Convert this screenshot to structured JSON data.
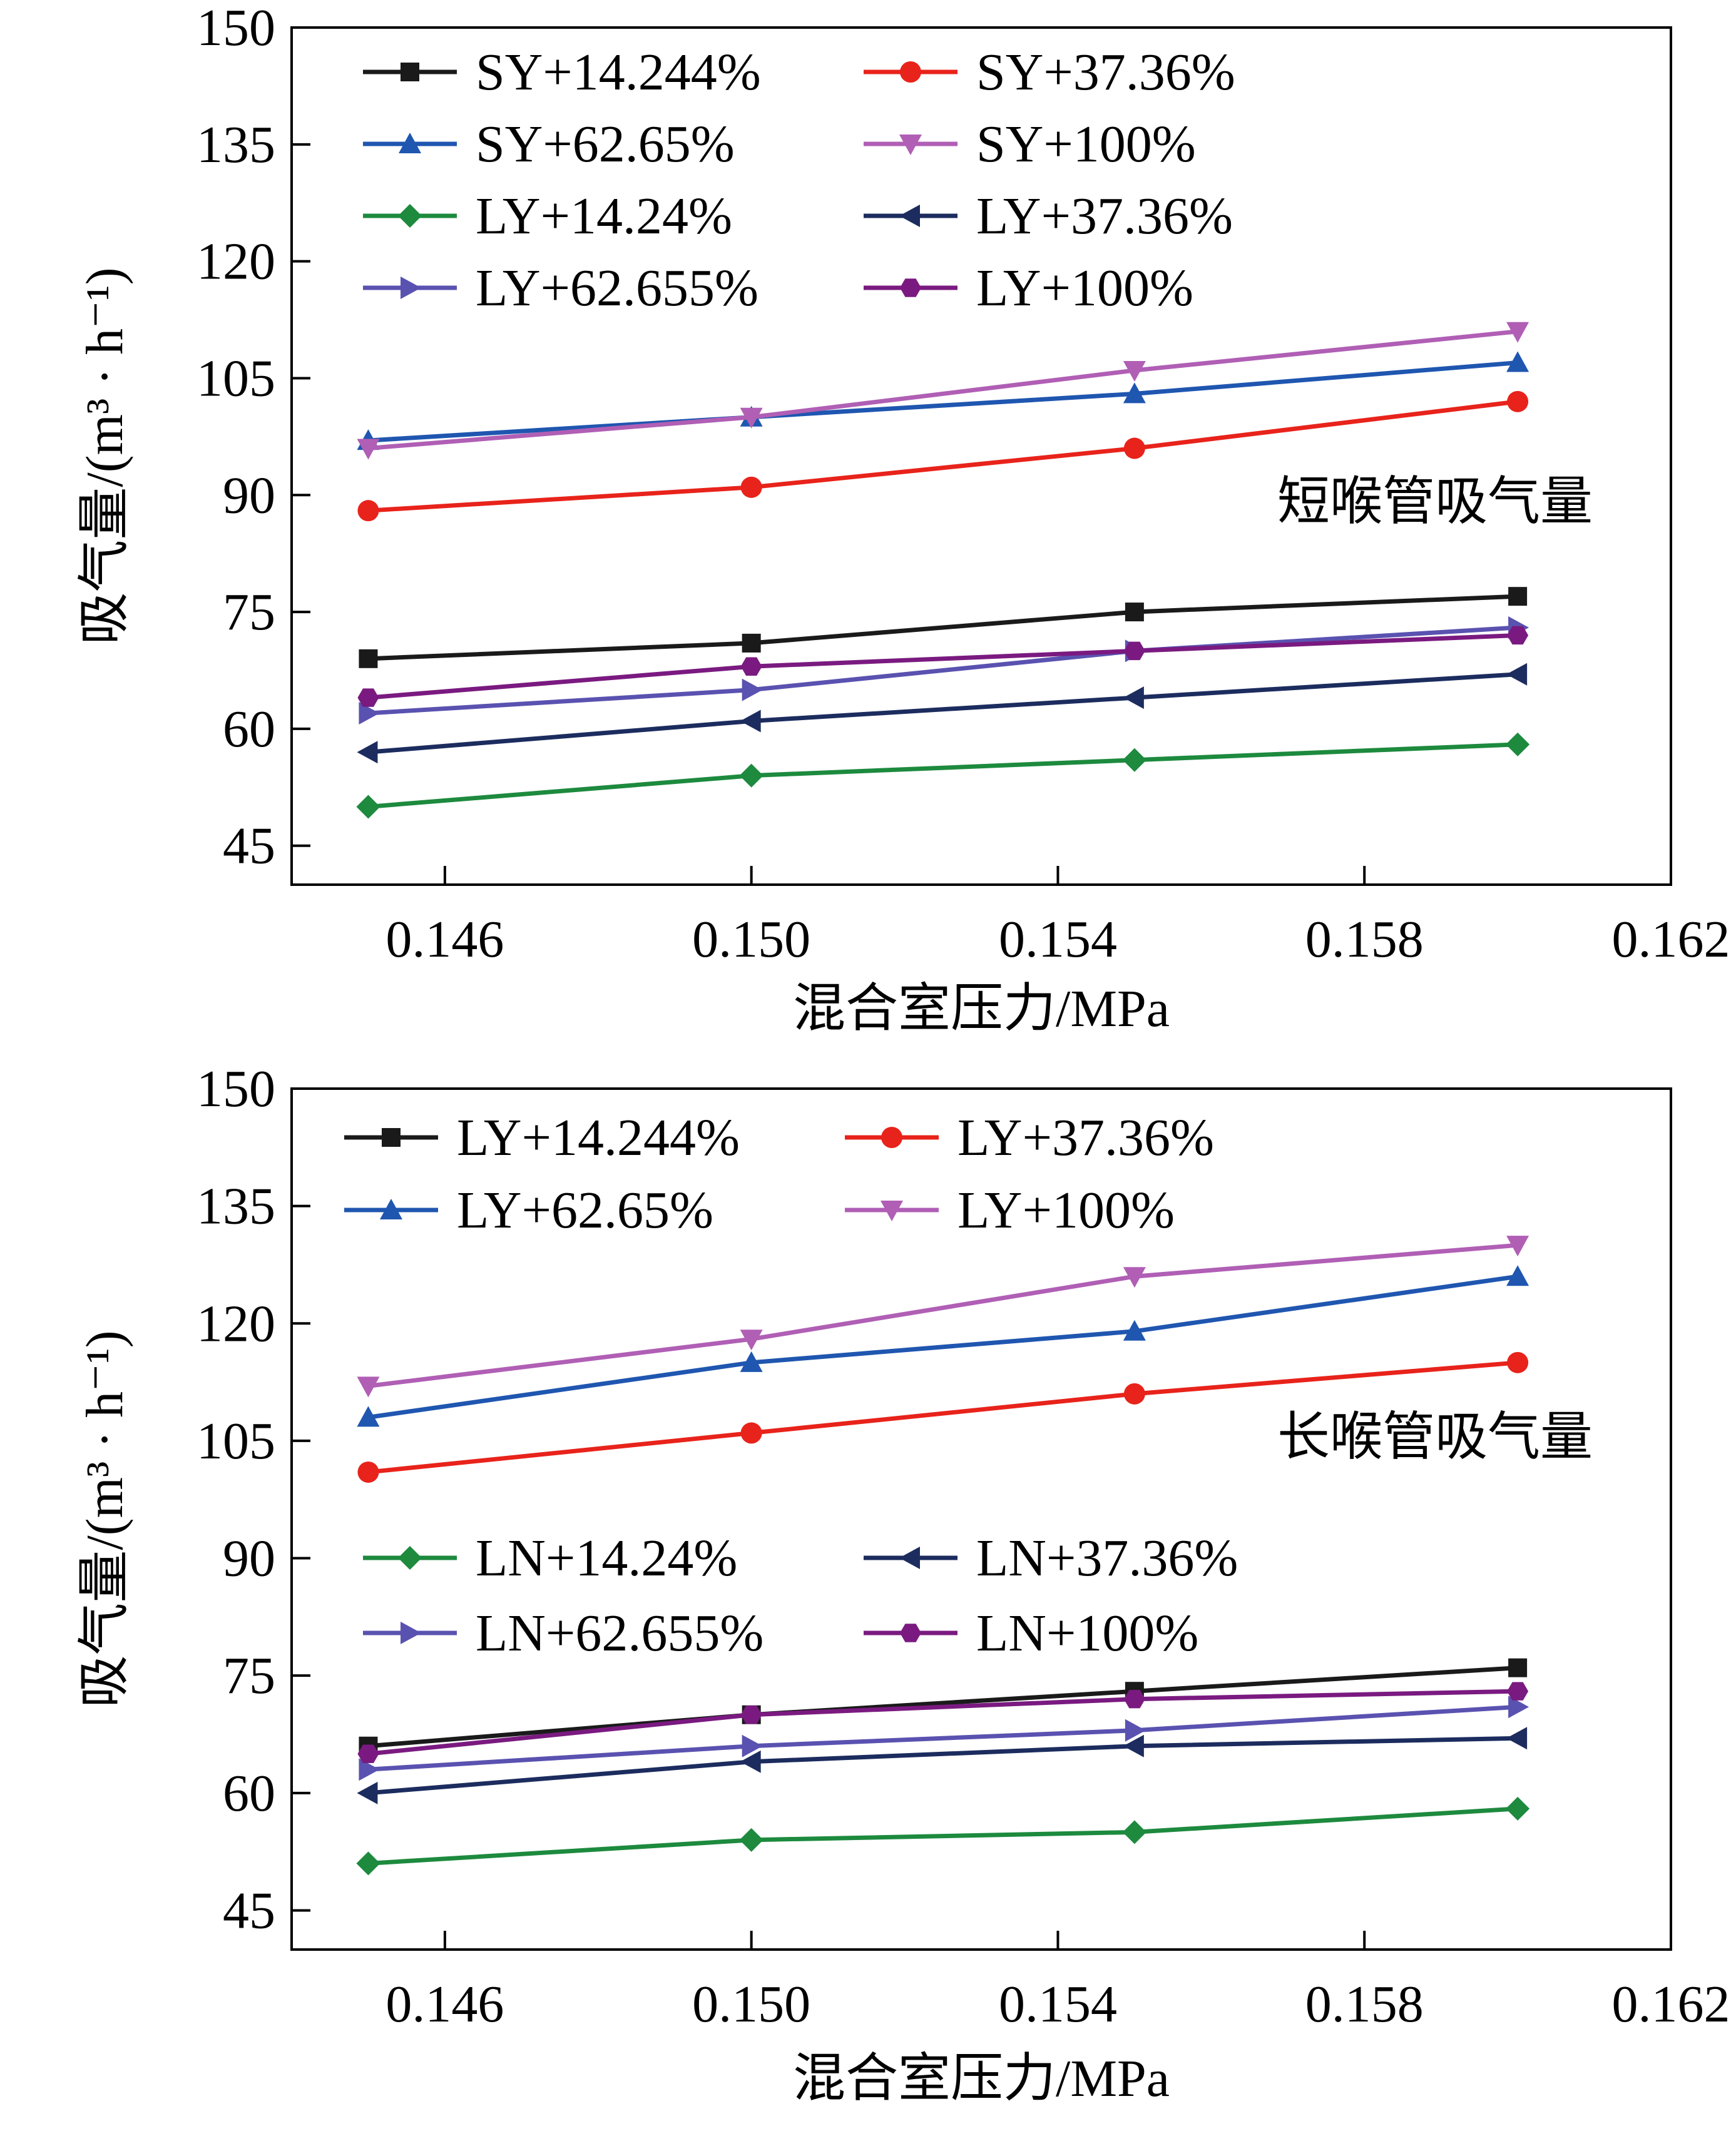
{
  "chart_data": [
    {
      "type": "line",
      "title": "",
      "annotation": "短喉管吸气量",
      "xlabel": "混合室压力/MPa",
      "ylabel": "吸气量/(m³ · h⁻¹)",
      "xlim": [
        0.144,
        0.162
      ],
      "ylim": [
        40,
        150
      ],
      "xticks": [
        "0.146",
        "0.150",
        "0.154",
        "0.158",
        "0.162"
      ],
      "yticks": [
        "45",
        "60",
        "75",
        "90",
        "105",
        "120",
        "135",
        "150"
      ],
      "x": [
        0.145,
        0.15,
        0.155,
        0.16
      ],
      "grid": false,
      "legend_position": "top-left",
      "legend_columns": 2,
      "series": [
        {
          "name": "SY+14.244%",
          "values": [
            69,
            71,
            75,
            77
          ],
          "color": "#1a1a1a",
          "marker": "square"
        },
        {
          "name": "SY+37.36%",
          "values": [
            88,
            91,
            96,
            102
          ],
          "color": "#e8231b",
          "marker": "circle"
        },
        {
          "name": "SY+62.65%",
          "values": [
            97,
            100,
            103,
            107
          ],
          "color": "#1f56b0",
          "marker": "triangle-up"
        },
        {
          "name": "SY+100%",
          "values": [
            96,
            100,
            106,
            111
          ],
          "color": "#b05fb5",
          "marker": "triangle-down"
        },
        {
          "name": "LY+14.24%",
          "values": [
            50,
            54,
            56,
            58
          ],
          "color": "#1d8a3e",
          "marker": "diamond"
        },
        {
          "name": "LY+37.36%",
          "values": [
            57,
            61,
            64,
            67
          ],
          "color": "#1c2c5e",
          "marker": "triangle-left"
        },
        {
          "name": "LY+62.655%",
          "values": [
            62,
            65,
            70,
            73
          ],
          "color": "#5a52b0",
          "marker": "triangle-right"
        },
        {
          "name": "LY+100%",
          "values": [
            64,
            68,
            70,
            72
          ],
          "color": "#7a1a80",
          "marker": "hexagon"
        }
      ]
    },
    {
      "type": "line",
      "title": "",
      "annotation": "长喉管吸气量",
      "xlabel": "混合室压力/MPa",
      "ylabel": "吸气量/(m³ · h⁻¹)",
      "xlim": [
        0.144,
        0.162
      ],
      "ylim": [
        40,
        150
      ],
      "xticks": [
        "0.146",
        "0.150",
        "0.154",
        "0.158",
        "0.162"
      ],
      "yticks": [
        "45",
        "60",
        "75",
        "90",
        "105",
        "120",
        "135",
        "150"
      ],
      "x": [
        0.145,
        0.15,
        0.155,
        0.16
      ],
      "grid": false,
      "legend_position": "top-left (upper group) and middle-left (lower group)",
      "legend_columns": 2,
      "series": [
        {
          "name": "LY+14.244%",
          "values": [
            66,
            70,
            73,
            76
          ],
          "color": "#1a1a1a",
          "marker": "square"
        },
        {
          "name": "LY+37.36%",
          "values": [
            101,
            106,
            111,
            115
          ],
          "color": "#e8231b",
          "marker": "circle"
        },
        {
          "name": "LY+62.65%",
          "values": [
            108,
            115,
            119,
            126
          ],
          "color": "#1f56b0",
          "marker": "triangle-up"
        },
        {
          "name": "LY+100%",
          "values": [
            112,
            118,
            126,
            130
          ],
          "color": "#b05fb5",
          "marker": "triangle-down"
        },
        {
          "name": "LN+14.24%",
          "values": [
            51,
            54,
            55,
            58
          ],
          "color": "#1d8a3e",
          "marker": "diamond"
        },
        {
          "name": "LN+37.36%",
          "values": [
            60,
            64,
            66,
            67
          ],
          "color": "#1c2c5e",
          "marker": "triangle-left"
        },
        {
          "name": "LN+62.655%",
          "values": [
            63,
            66,
            68,
            71
          ],
          "color": "#5a52b0",
          "marker": "triangle-right"
        },
        {
          "name": "LN+100%",
          "values": [
            65,
            70,
            72,
            73
          ],
          "color": "#7a1a80",
          "marker": "hexagon"
        }
      ]
    }
  ]
}
